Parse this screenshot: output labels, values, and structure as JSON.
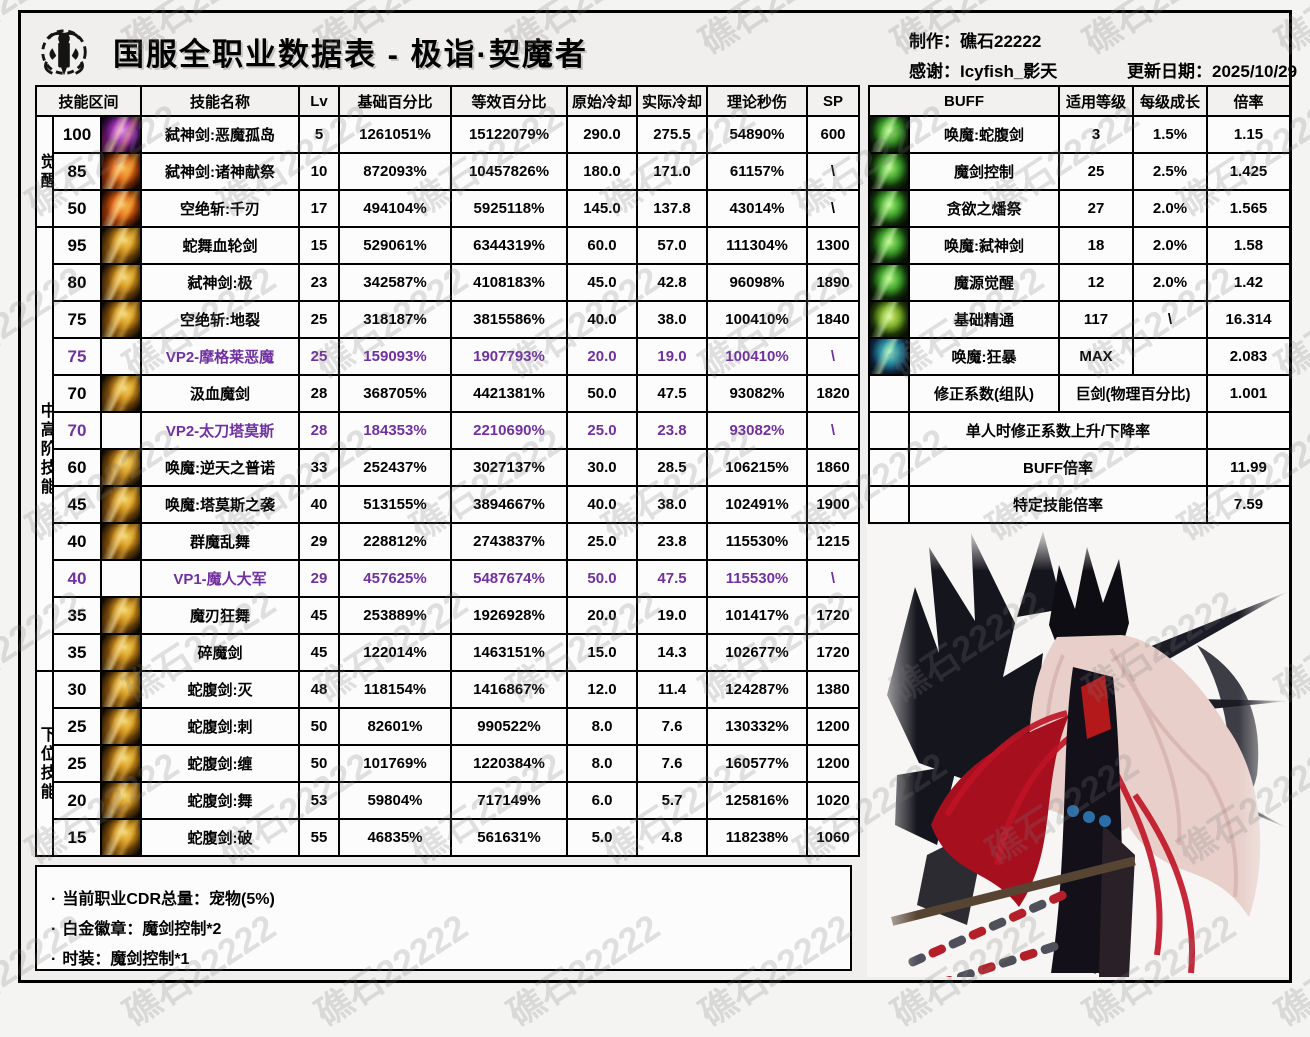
{
  "header": {
    "title": "国服全职业数据表 - 极诣·契魔者",
    "maker": "制作：礁石22222",
    "thanks": "感谢：Icyfish_影天",
    "update_date": "更新日期：2025/10/29"
  },
  "watermark": {
    "text": "礁石22222"
  },
  "colors": {
    "vp_purple": "#7030A0",
    "buff_icon_green": "#4fc837",
    "skill_icon_gold": "#e6a81e"
  },
  "skills": {
    "headers": [
      "技能区间",
      "技能名称",
      "Lv",
      "基础百分比",
      "等效百分比",
      "原始冷却",
      "实际冷却",
      "理论秒伤",
      "SP"
    ],
    "groups": [
      {
        "label": "觉醒",
        "span": 3
      },
      {
        "label": "中高阶技能",
        "span": 12
      },
      {
        "label": "下位技能",
        "span": 5
      }
    ],
    "rows": [
      {
        "range": "100",
        "icon": "purple",
        "name": "弑神剑:恶魔孤岛",
        "lv": "5",
        "base": "1261051%",
        "equiv": "15122079%",
        "cd_base": "290.0",
        "cd_real": "275.5",
        "dps": "54890%",
        "sp": "600",
        "vp": false
      },
      {
        "range": "85",
        "icon": "orange",
        "name": "弑神剑:诸神献祭",
        "lv": "10",
        "base": "872093%",
        "equiv": "10457826%",
        "cd_base": "180.0",
        "cd_real": "171.0",
        "dps": "61157%",
        "sp": "\\",
        "vp": false
      },
      {
        "range": "50",
        "icon": "orange",
        "name": "空绝斩:千刃",
        "lv": "17",
        "base": "494104%",
        "equiv": "5925118%",
        "cd_base": "145.0",
        "cd_real": "137.8",
        "dps": "43014%",
        "sp": "\\",
        "vp": false
      },
      {
        "range": "95",
        "icon": "gold",
        "name": "蛇舞血轮剑",
        "lv": "15",
        "base": "529061%",
        "equiv": "6344319%",
        "cd_base": "60.0",
        "cd_real": "57.0",
        "dps": "111304%",
        "sp": "1300",
        "vp": false
      },
      {
        "range": "80",
        "icon": "gold",
        "name": "弑神剑:极",
        "lv": "23",
        "base": "342587%",
        "equiv": "4108183%",
        "cd_base": "45.0",
        "cd_real": "42.8",
        "dps": "96098%",
        "sp": "1890",
        "vp": false
      },
      {
        "range": "75",
        "icon": "gold",
        "name": "空绝斩:地裂",
        "lv": "25",
        "base": "318187%",
        "equiv": "3815586%",
        "cd_base": "40.0",
        "cd_real": "38.0",
        "dps": "100410%",
        "sp": "1840",
        "vp": false
      },
      {
        "range": "75",
        "icon": "none",
        "name": "VP2-摩格莱恶魔",
        "lv": "25",
        "base": "159093%",
        "equiv": "1907793%",
        "cd_base": "20.0",
        "cd_real": "19.0",
        "dps": "100410%",
        "sp": "\\",
        "vp": true
      },
      {
        "range": "70",
        "icon": "gold",
        "name": "汲血魔剑",
        "lv": "28",
        "base": "368705%",
        "equiv": "4421381%",
        "cd_base": "50.0",
        "cd_real": "47.5",
        "dps": "93082%",
        "sp": "1820",
        "vp": false
      },
      {
        "range": "70",
        "icon": "none",
        "name": "VP2-太刀塔莫斯",
        "lv": "28",
        "base": "184353%",
        "equiv": "2210690%",
        "cd_base": "25.0",
        "cd_real": "23.8",
        "dps": "93082%",
        "sp": "\\",
        "vp": true
      },
      {
        "range": "60",
        "icon": "gold",
        "name": "唤魔:逆天之普诺",
        "lv": "33",
        "base": "252437%",
        "equiv": "3027137%",
        "cd_base": "30.0",
        "cd_real": "28.5",
        "dps": "106215%",
        "sp": "1860",
        "vp": false
      },
      {
        "range": "45",
        "icon": "gold",
        "name": "唤魔:塔莫斯之袭",
        "lv": "40",
        "base": "513155%",
        "equiv": "3894667%",
        "cd_base": "40.0",
        "cd_real": "38.0",
        "dps": "102491%",
        "sp": "1900",
        "vp": false
      },
      {
        "range": "40",
        "icon": "gold",
        "name": "群魔乱舞",
        "lv": "29",
        "base": "228812%",
        "equiv": "2743837%",
        "cd_base": "25.0",
        "cd_real": "23.8",
        "dps": "115530%",
        "sp": "1215",
        "vp": false
      },
      {
        "range": "40",
        "icon": "none",
        "name": "VP1-魔人大军",
        "lv": "29",
        "base": "457625%",
        "equiv": "5487674%",
        "cd_base": "50.0",
        "cd_real": "47.5",
        "dps": "115530%",
        "sp": "\\",
        "vp": true
      },
      {
        "range": "35",
        "icon": "gold",
        "name": "魔刃狂舞",
        "lv": "45",
        "base": "253889%",
        "equiv": "1926928%",
        "cd_base": "20.0",
        "cd_real": "19.0",
        "dps": "101417%",
        "sp": "1720",
        "vp": false
      },
      {
        "range": "35",
        "icon": "gold",
        "name": "碎魔剑",
        "lv": "45",
        "base": "122014%",
        "equiv": "1463151%",
        "cd_base": "15.0",
        "cd_real": "14.3",
        "dps": "102677%",
        "sp": "1720",
        "vp": false
      },
      {
        "range": "30",
        "icon": "gold",
        "name": "蛇腹剑:灭",
        "lv": "48",
        "base": "118154%",
        "equiv": "1416867%",
        "cd_base": "12.0",
        "cd_real": "11.4",
        "dps": "124287%",
        "sp": "1380",
        "vp": false
      },
      {
        "range": "25",
        "icon": "gold",
        "name": "蛇腹剑:刺",
        "lv": "50",
        "base": "82601%",
        "equiv": "990522%",
        "cd_base": "8.0",
        "cd_real": "7.6",
        "dps": "130332%",
        "sp": "1200",
        "vp": false
      },
      {
        "range": "25",
        "icon": "gold",
        "name": "蛇腹剑:缠",
        "lv": "50",
        "base": "101769%",
        "equiv": "1220384%",
        "cd_base": "8.0",
        "cd_real": "7.6",
        "dps": "160577%",
        "sp": "1200",
        "vp": false
      },
      {
        "range": "20",
        "icon": "gold",
        "name": "蛇腹剑:舞",
        "lv": "53",
        "base": "59804%",
        "equiv": "717149%",
        "cd_base": "6.0",
        "cd_real": "5.7",
        "dps": "125816%",
        "sp": "1020",
        "vp": false
      },
      {
        "range": "15",
        "icon": "gold",
        "name": "蛇腹剑:破",
        "lv": "55",
        "base": "46835%",
        "equiv": "561631%",
        "cd_base": "5.0",
        "cd_real": "4.8",
        "dps": "118238%",
        "sp": "1060",
        "vp": false
      }
    ]
  },
  "buffs": {
    "headers": [
      "BUFF",
      "适用等级",
      "每级成长",
      "倍率"
    ],
    "rows": [
      {
        "icon": "green",
        "name": "唤魔:蛇腹剑",
        "level": "3",
        "growth": "1.5%",
        "rate": "1.15"
      },
      {
        "icon": "green",
        "name": "魔剑控制",
        "level": "25",
        "growth": "2.5%",
        "rate": "1.425"
      },
      {
        "icon": "green",
        "name": "贪欲之燔祭",
        "level": "27",
        "growth": "2.0%",
        "rate": "1.565"
      },
      {
        "icon": "green",
        "name": "唤魔:弑神剑",
        "level": "18",
        "growth": "2.0%",
        "rate": "1.58"
      },
      {
        "icon": "green",
        "name": "魔源觉醒",
        "level": "12",
        "growth": "2.0%",
        "rate": "1.42"
      },
      {
        "icon": "lime",
        "name": "基础精通",
        "level": "117",
        "growth": "\\",
        "rate": "16.314"
      },
      {
        "icon": "teal",
        "name": "唤魔:狂暴",
        "level": "MAX",
        "growth": "",
        "rate": "2.083"
      }
    ],
    "extra_rows": [
      {
        "name": "修正系数(组队)",
        "mid": "巨剑(物理百分比)",
        "rate": "1.001"
      },
      {
        "name": "单人时修正系数上升/下降率",
        "mid": null,
        "rate": ""
      },
      {
        "name": "BUFF倍率",
        "mid": null,
        "rate": "11.99"
      },
      {
        "name": "特定技能倍率",
        "mid": null,
        "rate": "7.59"
      }
    ]
  },
  "notes": {
    "items": [
      "当前职业CDR总量：宠物(5%)",
      "白金徽章：魔剑控制*2",
      "时装：魔剑控制*1"
    ]
  }
}
